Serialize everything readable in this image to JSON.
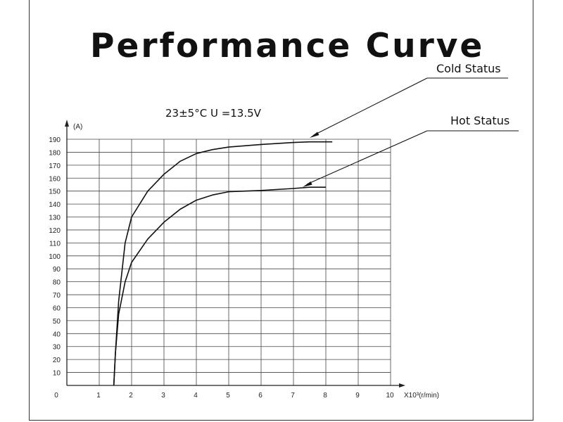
{
  "chart_data": {
    "type": "line",
    "title": "Performance Curve",
    "condition": "23±5°C   U  =13.5V",
    "ylabel": "(A)",
    "xlabel": "X10³(r/min)",
    "xlim": [
      0,
      10
    ],
    "ylim": [
      0,
      190
    ],
    "x_ticks": [
      0,
      1,
      2,
      3,
      4,
      5,
      6,
      7,
      8,
      9,
      10
    ],
    "y_ticks": [
      10,
      20,
      30,
      40,
      50,
      60,
      70,
      80,
      90,
      100,
      110,
      120,
      130,
      140,
      150,
      160,
      170,
      180,
      190
    ],
    "grid": true,
    "series": [
      {
        "name": "Cold Status",
        "x": [
          1.45,
          1.5,
          1.6,
          1.8,
          2.0,
          2.5,
          3.0,
          3.5,
          4.0,
          4.5,
          5.0,
          6.0,
          7.0,
          7.5,
          8.2
        ],
        "y": [
          0,
          25,
          65,
          110,
          130,
          150,
          163,
          173,
          179,
          182,
          184,
          186,
          187.5,
          188,
          188
        ]
      },
      {
        "name": "Hot Status",
        "x": [
          1.45,
          1.5,
          1.6,
          1.8,
          2.0,
          2.5,
          3.0,
          3.5,
          4.0,
          4.5,
          5.0,
          6.0,
          7.0,
          7.5,
          8.0
        ],
        "y": [
          0,
          25,
          55,
          80,
          95,
          113,
          126,
          136,
          143,
          147,
          149.5,
          150.5,
          152,
          153,
          153
        ]
      }
    ]
  }
}
